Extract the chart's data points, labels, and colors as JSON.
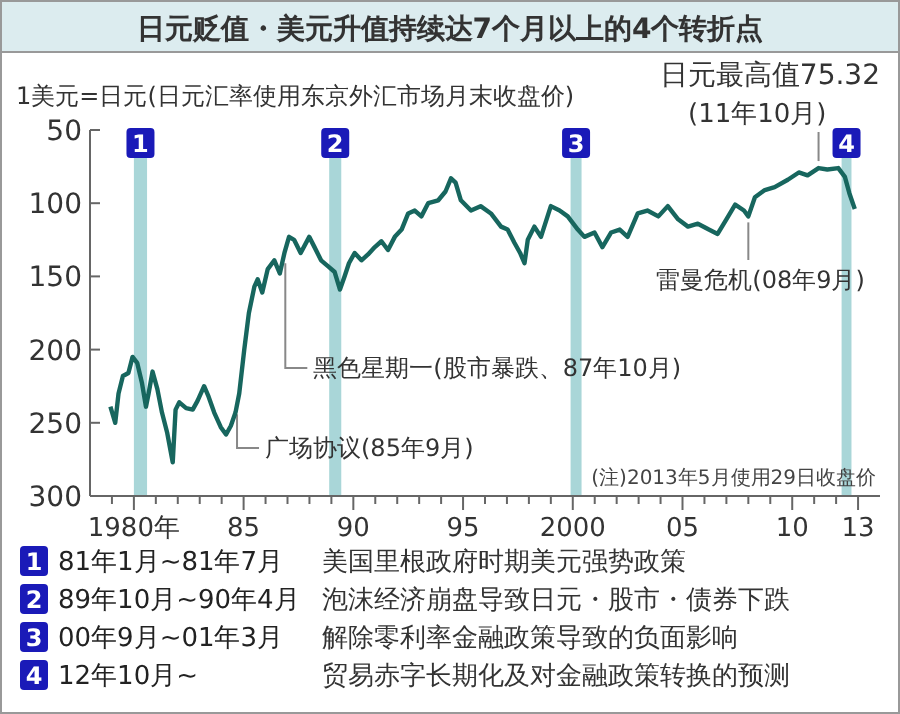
{
  "chart_data": {
    "type": "line",
    "title": "日元贬值・美元升值持续达7个月以上的4个转折点",
    "ylabel": "1美元=日元(日元汇率使用东京外汇市场月末收盘价)",
    "xlim": [
      1978,
      2014
    ],
    "ylim": [
      300,
      50
    ],
    "xticks": [
      {
        "value": 1979,
        "label": null
      },
      {
        "value": 1980,
        "label": "1980年"
      },
      {
        "value": 1981,
        "label": null
      },
      {
        "value": 1982,
        "label": null
      },
      {
        "value": 1983,
        "label": null
      },
      {
        "value": 1984,
        "label": null
      },
      {
        "value": 1985,
        "label": "85"
      },
      {
        "value": 1986,
        "label": null
      },
      {
        "value": 1987,
        "label": null
      },
      {
        "value": 1988,
        "label": null
      },
      {
        "value": 1989,
        "label": null
      },
      {
        "value": 1990,
        "label": "90"
      },
      {
        "value": 1991,
        "label": null
      },
      {
        "value": 1992,
        "label": null
      },
      {
        "value": 1993,
        "label": null
      },
      {
        "value": 1994,
        "label": null
      },
      {
        "value": 1995,
        "label": "95"
      },
      {
        "value": 1996,
        "label": null
      },
      {
        "value": 1997,
        "label": null
      },
      {
        "value": 1998,
        "label": null
      },
      {
        "value": 1999,
        "label": null
      },
      {
        "value": 2000,
        "label": "2000"
      },
      {
        "value": 2001,
        "label": null
      },
      {
        "value": 2002,
        "label": null
      },
      {
        "value": 2003,
        "label": null
      },
      {
        "value": 2004,
        "label": null
      },
      {
        "value": 2005,
        "label": "05"
      },
      {
        "value": 2006,
        "label": null
      },
      {
        "value": 2007,
        "label": null
      },
      {
        "value": 2008,
        "label": null
      },
      {
        "value": 2009,
        "label": null
      },
      {
        "value": 2010,
        "label": "10"
      },
      {
        "value": 2011,
        "label": null
      },
      {
        "value": 2012,
        "label": null
      },
      {
        "value": 2013,
        "label": "13"
      }
    ],
    "yticks": [
      50,
      100,
      150,
      200,
      250,
      300
    ],
    "grid": false,
    "series": [
      {
        "color": "#17665e",
        "x": [
          1978.93,
          1979.15,
          1979.3,
          1979.5,
          1979.75,
          1979.94,
          1980.15,
          1980.37,
          1980.55,
          1980.67,
          1980.85,
          1981.07,
          1981.28,
          1981.52,
          1981.77,
          1981.9,
          1982.07,
          1982.38,
          1982.68,
          1982.9,
          1983.2,
          1983.4,
          1983.66,
          1983.96,
          1984.2,
          1984.42,
          1984.63,
          1984.8,
          1985.03,
          1985.24,
          1985.49,
          1985.64,
          1985.85,
          1986.1,
          1986.4,
          1986.65,
          1986.86,
          1987.07,
          1987.3,
          1987.6,
          1987.99,
          1988.23,
          1988.53,
          1988.84,
          1989.15,
          1989.39,
          1989.6,
          1989.8,
          1990.06,
          1990.37,
          1990.67,
          1990.98,
          1991.28,
          1991.58,
          1991.89,
          1992.2,
          1992.5,
          1992.8,
          1993.1,
          1993.41,
          1993.87,
          1994.2,
          1994.45,
          1994.66,
          1994.9,
          1995.36,
          1995.8,
          1996.27,
          1996.73,
          1997.03,
          1997.34,
          1997.6,
          1997.8,
          1997.95,
          1998.25,
          1998.55,
          1999.0,
          1999.4,
          1999.77,
          2000.23,
          2000.53,
          2000.99,
          2001.35,
          2001.75,
          2002.14,
          2002.5,
          2002.96,
          2003.4,
          2003.9,
          2004.33,
          2004.8,
          2005.25,
          2005.7,
          2006.2,
          2006.6,
          2007.0,
          2007.4,
          2007.8,
          2008.0,
          2008.3,
          2008.75,
          2009.2,
          2009.8,
          2010.3,
          2010.7,
          2011.2,
          2011.6,
          2012.1,
          2012.4,
          2012.6,
          2012.85
        ],
        "values": [
          239,
          250,
          230,
          218,
          216,
          205,
          209,
          223,
          239,
          230,
          215,
          227,
          243,
          257,
          277,
          241,
          236,
          240,
          241,
          235,
          225,
          232,
          243,
          253,
          258,
          252,
          243,
          230,
          200,
          175,
          157,
          152,
          161,
          145,
          139,
          148,
          134,
          123,
          125,
          134,
          123,
          130,
          139,
          143,
          147,
          159,
          150,
          141,
          134,
          139,
          135,
          130,
          126,
          132,
          123,
          118,
          107,
          105,
          109,
          100,
          98,
          92,
          83,
          86,
          98,
          105,
          102,
          107,
          116,
          118,
          127,
          134,
          141,
          125,
          116,
          123,
          102,
          105,
          109,
          118,
          123,
          120,
          130,
          120,
          118,
          123,
          107,
          105,
          109,
          102,
          111,
          116,
          114,
          118,
          121,
          111,
          101,
          105,
          109,
          96,
          91,
          89,
          84,
          79,
          81,
          76,
          77,
          76,
          82,
          93,
          104
        ]
      }
    ],
    "bands": [
      {
        "axis": "x",
        "from": 1980.0,
        "to": 1980.6,
        "label": "1",
        "color": "#a9d6d8"
      },
      {
        "axis": "x",
        "from": 1988.9,
        "to": 1989.45,
        "label": "2",
        "color": "#a9d6d8"
      },
      {
        "axis": "x",
        "from": 1999.9,
        "to": 2000.4,
        "label": "3",
        "color": "#a9d6d8"
      },
      {
        "axis": "x",
        "from": 2012.25,
        "to": 2012.7,
        "label": "4",
        "color": "#a9d6d8"
      }
    ],
    "annotations": [
      {
        "text": "日元最高值75.32",
        "x": 2011.2,
        "y": 75.32
      },
      "(11年10月)",
      {
        "text": "雷曼危机(08年9月)",
        "x": 2008.0,
        "y": 109
      },
      {
        "text": "黑色星期一(股市暴跌、87年10月)",
        "x": 1986.9,
        "y": 137
      },
      {
        "text": "广场协议(85年9月)",
        "x": 1984.7,
        "y": 240
      },
      "(注)2013年5月使用29日收盘价",
      "81年1月~81年7月",
      "美国里根政府时期美元强势政策",
      "89年10月~90年4月",
      "泡沫经济崩盘导致日元・股市・债券下跌",
      "00年9月~01年3月",
      "解除零利率金融政策导致的负面影响",
      "12年10月~",
      "贸易赤字长期化及对金融政策转换的预测"
    ]
  }
}
